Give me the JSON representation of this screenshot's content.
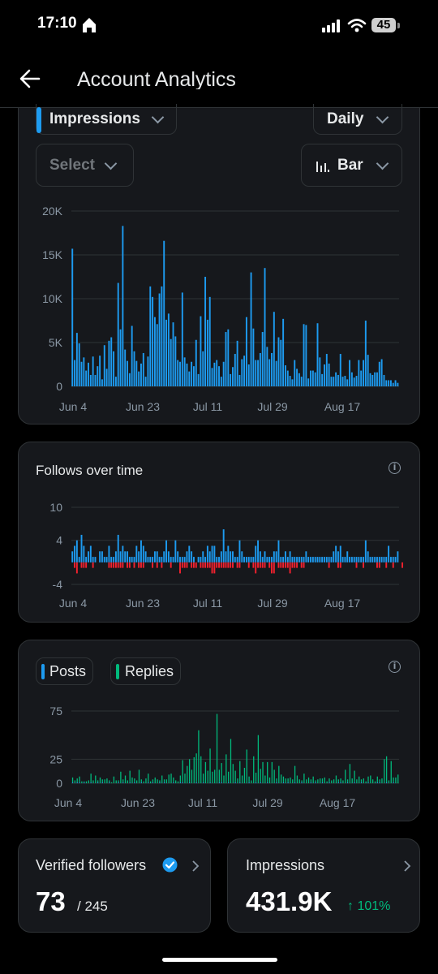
{
  "status_bar": {
    "time": "17:10",
    "battery": "45"
  },
  "header": {
    "title": "Account Analytics"
  },
  "controls": {
    "metric": "Impressions",
    "period": "Daily",
    "compare": "Select",
    "chart_type": "Bar"
  },
  "legend": {
    "posts": "Posts",
    "replies": "Replies"
  },
  "follows_card": {
    "title": "Follows over time"
  },
  "stats": {
    "verified": {
      "label": "Verified followers",
      "value": "73",
      "total": "/ 245"
    },
    "impressions": {
      "label": "Impressions",
      "value": "431.9K",
      "change": "↑ 101%"
    }
  },
  "colors": {
    "blue": "#1d9bf0",
    "red": "#f4212e",
    "green": "#00ba7c",
    "card": "#16181c"
  },
  "chart_data": [
    {
      "type": "bar",
      "metric": "Impressions",
      "yticks": [
        "20K",
        "15K",
        "10K",
        "5K",
        "0"
      ],
      "ylim": [
        0,
        20000
      ],
      "xticks": [
        "Jun 4",
        "Jun 23",
        "Jul 11",
        "Jul 29",
        "Aug 17"
      ],
      "values": [
        15700,
        3000,
        6100,
        4900,
        2800,
        3300,
        1800,
        2700,
        1300,
        3400,
        1300,
        2300,
        3500,
        800,
        4700,
        2000,
        5200,
        5600,
        4000,
        1100,
        11800,
        6500,
        18300,
        4200,
        2900,
        1500,
        6900,
        4000,
        2900,
        1700,
        2600,
        3800,
        1100,
        3400,
        11400,
        10200,
        7900,
        7100,
        10600,
        11400,
        16600,
        7600,
        8300,
        5400,
        7300,
        5700,
        3000,
        2800,
        10700,
        3300,
        2600,
        1700,
        2800,
        2300,
        5300,
        1400,
        8000,
        4000,
        12500,
        7600,
        10200,
        2100,
        2700,
        3000,
        2300,
        1100,
        2800,
        6200,
        6500,
        1400,
        2200,
        3700,
        5200,
        1300,
        3100,
        3500,
        7900,
        2500,
        13000,
        6600,
        3000,
        3000,
        3800,
        6200,
        13500,
        4500,
        3100,
        3800,
        8500,
        2900,
        5600,
        5300,
        7700,
        2400,
        1800,
        1200,
        800,
        3000,
        2000,
        1500,
        1100,
        7100,
        7000,
        900,
        1800,
        1800,
        1600,
        7200,
        3300,
        1400,
        2500,
        3700,
        2600,
        1100,
        1100,
        1600,
        1300,
        3700,
        1100,
        1200,
        800,
        3000,
        1600,
        1000,
        1200,
        3000,
        1800,
        3000,
        7500,
        3600,
        1500,
        1300,
        1600,
        1600,
        2800,
        3100,
        1300,
        700,
        700,
        700,
        400,
        700,
        400
      ]
    },
    {
      "type": "bar",
      "title": "Follows over time",
      "yticks": [
        "10",
        "4",
        "-4"
      ],
      "ylim": [
        -4,
        10
      ],
      "xticks": [
        "Jun 4",
        "Jun 23",
        "Jul 11",
        "Jul 29",
        "Aug 17"
      ],
      "gains": [
        2,
        3,
        4,
        1,
        5,
        3,
        1,
        2,
        3,
        1,
        1,
        0,
        2,
        2,
        1,
        1,
        3,
        1,
        1,
        2,
        5,
        2,
        3,
        2,
        2,
        1,
        1,
        1,
        3,
        2,
        4,
        3,
        2,
        1,
        1,
        1,
        2,
        2,
        1,
        1,
        2,
        4,
        2,
        1,
        1,
        4,
        2,
        1,
        1,
        1,
        2,
        3,
        2,
        1,
        0,
        1,
        1,
        2,
        1,
        3,
        2,
        3,
        3,
        1,
        1,
        2,
        6,
        2,
        3,
        2,
        2,
        1,
        1,
        4,
        2,
        1,
        1,
        1,
        1,
        1,
        3,
        4,
        2,
        1,
        2,
        1,
        1,
        1,
        2,
        2,
        4,
        1,
        1,
        2,
        1,
        2,
        1,
        1,
        1,
        1,
        1,
        1,
        2,
        1,
        1,
        1,
        1,
        1,
        1,
        1,
        1,
        1,
        1,
        1,
        2,
        3,
        2,
        3,
        1,
        1,
        2,
        1,
        1,
        1,
        1,
        1,
        1,
        1,
        4,
        2,
        1,
        1,
        1,
        1,
        1,
        1,
        1,
        1,
        3,
        1,
        1,
        1,
        2
      ],
      "losses": [
        0,
        -1,
        -2,
        0,
        -1,
        -1,
        -1,
        0,
        0,
        -1,
        0,
        0,
        0,
        0,
        0,
        0,
        -1,
        -1,
        -1,
        -1,
        -1,
        -1,
        -1,
        0,
        -1,
        -1,
        0,
        -1,
        0,
        -1,
        -1,
        -1,
        0,
        0,
        0,
        -1,
        0,
        -1,
        0,
        -1,
        0,
        0,
        0,
        -1,
        0,
        0,
        0,
        -2,
        -1,
        -1,
        -1,
        0,
        -1,
        -1,
        -1,
        0,
        -1,
        -1,
        -1,
        -1,
        -1,
        -2,
        -2,
        -1,
        -1,
        -1,
        -1,
        -1,
        -1,
        -1,
        -1,
        0,
        -1,
        -1,
        0,
        0,
        0,
        -1,
        0,
        -1,
        -2,
        -1,
        -1,
        -1,
        -1,
        0,
        -1,
        -2,
        -2,
        0,
        -1,
        -1,
        -1,
        -1,
        -1,
        -2,
        -1,
        -1,
        -1,
        0,
        -1,
        -1,
        0,
        0,
        0,
        0,
        0,
        0,
        0,
        0,
        0,
        0,
        -1,
        0,
        0,
        0,
        -1,
        -1,
        0,
        0,
        0,
        0,
        0,
        0,
        -1,
        0,
        0,
        -1,
        0,
        0,
        0,
        0,
        0,
        -1,
        -1,
        0,
        0,
        -1,
        0,
        0,
        -1,
        0,
        0,
        0,
        -1
      ]
    },
    {
      "type": "bar",
      "series_names": [
        "Posts",
        "Replies"
      ],
      "yticks": [
        "75",
        "25",
        "0"
      ],
      "ylim": [
        0,
        75
      ],
      "xticks": [
        "Jun 4",
        "Jun 23",
        "Jul 11",
        "Jul 29",
        "Aug 17"
      ],
      "posts": [
        1,
        0,
        1,
        1,
        0,
        1,
        0,
        0,
        1,
        0,
        0,
        1,
        0,
        1,
        0,
        0,
        1,
        0,
        0,
        0,
        1,
        0,
        1,
        0,
        0,
        1,
        0,
        1,
        0,
        0,
        1,
        0,
        0,
        1,
        0,
        1,
        0,
        0,
        1,
        0,
        1,
        0,
        0,
        0,
        1,
        0,
        0,
        1,
        1,
        0,
        0,
        1,
        0,
        0,
        1,
        0,
        0,
        1,
        0,
        0,
        1,
        0,
        0,
        0,
        1,
        1,
        0,
        0,
        1,
        0,
        0,
        1,
        0,
        1,
        0,
        0,
        0,
        1,
        0,
        0,
        1,
        0,
        1,
        0,
        0,
        1,
        0,
        0,
        0,
        1,
        0,
        0,
        1,
        0,
        1,
        0,
        0,
        1,
        0,
        0,
        1,
        0,
        0,
        0,
        1,
        0,
        1,
        0,
        0,
        1,
        0,
        0,
        1,
        0,
        0,
        0,
        1,
        1,
        0,
        0,
        1,
        0,
        0,
        1,
        0,
        0,
        1,
        0,
        0,
        1,
        0,
        0,
        0,
        1,
        1,
        0,
        0,
        1,
        0,
        0,
        1,
        0,
        0
      ],
      "replies": [
        5,
        3,
        4,
        6,
        2,
        1,
        2,
        3,
        9,
        3,
        8,
        2,
        6,
        3,
        4,
        5,
        2,
        1,
        7,
        3,
        2,
        12,
        3,
        8,
        3,
        12,
        6,
        4,
        3,
        14,
        3,
        2,
        5,
        9,
        2,
        3,
        6,
        4,
        2,
        8,
        3,
        4,
        9,
        10,
        5,
        3,
        2,
        7,
        23,
        10,
        18,
        24,
        14,
        27,
        30,
        55,
        28,
        9,
        22,
        13,
        35,
        12,
        14,
        72,
        13,
        20,
        8,
        30,
        11,
        46,
        20,
        12,
        5,
        22,
        8,
        16,
        35,
        6,
        3,
        28,
        10,
        50,
        14,
        22,
        8,
        21,
        6,
        22,
        14,
        4,
        18,
        9,
        6,
        5,
        4,
        6,
        4,
        17,
        8,
        4,
        2,
        10,
        4,
        6,
        3,
        7,
        2,
        4,
        5,
        4,
        6,
        2,
        4,
        3,
        4,
        8,
        3,
        4,
        3,
        14,
        3,
        20,
        5,
        12,
        4,
        7,
        3,
        5,
        2,
        6,
        8,
        4,
        2,
        6,
        3,
        5,
        25,
        27,
        3,
        23,
        5,
        6,
        9
      ]
    }
  ]
}
